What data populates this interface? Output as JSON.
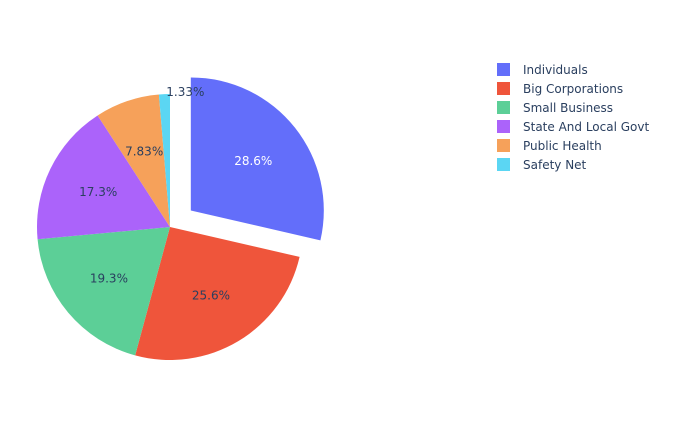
{
  "chart_data": {
    "type": "pie",
    "direction": "clockwise",
    "start_angle_deg": 90,
    "categories": [
      "Individuals",
      "Big Corporations",
      "Small Business",
      "State And Local Govt",
      "Public Health",
      "Safety Net"
    ],
    "values": [
      28.6,
      25.6,
      19.3,
      17.3,
      7.83,
      1.33
    ],
    "text_labels": [
      "28.6%",
      "25.6%",
      "19.3%",
      "17.3%",
      "7.83%",
      "1.33%"
    ],
    "colors": [
      "#636efa",
      "#ef553b",
      "#00cc96",
      "#ab63fa",
      "#ffa15a",
      "#19d3f3"
    ],
    "display_colors": [
      "#636efa",
      "#ef553b",
      "#5ccf97",
      "#ab63fa",
      "#f6a15a",
      "#5bd6f3"
    ],
    "pulled_slice": "Individuals",
    "pull_fraction": 0.2,
    "legend": {
      "position": "top-right",
      "entries": [
        "Individuals",
        "Big Corporations",
        "Small Business",
        "State And Local Govt",
        "Public Health",
        "Safety Net"
      ]
    }
  }
}
